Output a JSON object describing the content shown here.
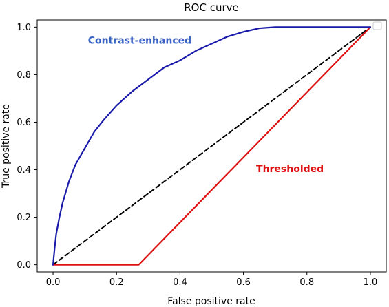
{
  "chart_data": {
    "type": "line",
    "title": "ROC curve",
    "xlabel": "False positive rate",
    "ylabel": "True positive rate",
    "xlim": [
      -0.05,
      1.05
    ],
    "ylim": [
      -0.03,
      1.03
    ],
    "x_ticks": [
      "0.0",
      "0.2",
      "0.4",
      "0.6",
      "0.8",
      "1.0"
    ],
    "y_ticks": [
      "0.0",
      "0.2",
      "0.4",
      "0.6",
      "0.8",
      "1.0"
    ],
    "grid": false,
    "legend": "top-right (empty)",
    "series": [
      {
        "name": "Contrast-enhanced",
        "color": "#1a1aaa",
        "style": "solid",
        "x": [
          0,
          0.005,
          0.01,
          0.02,
          0.03,
          0.05,
          0.07,
          0.1,
          0.13,
          0.16,
          0.2,
          0.25,
          0.3,
          0.35,
          0.4,
          0.45,
          0.5,
          0.55,
          0.6,
          0.65,
          0.7,
          0.75,
          0.8,
          0.85,
          0.9,
          0.95,
          1.0
        ],
        "y": [
          0,
          0.07,
          0.13,
          0.2,
          0.26,
          0.35,
          0.42,
          0.49,
          0.56,
          0.61,
          0.67,
          0.73,
          0.78,
          0.83,
          0.86,
          0.9,
          0.93,
          0.96,
          0.98,
          0.995,
          1.0,
          1.0,
          1.0,
          1.0,
          1.0,
          1.0,
          1.0
        ]
      },
      {
        "name": "Thresholded",
        "color": "#dd1111",
        "style": "solid",
        "x": [
          0,
          0.27,
          1.0
        ],
        "y": [
          0,
          0,
          1.0
        ]
      },
      {
        "color": "#000000",
        "style": "dashed",
        "x": [
          0,
          1
        ],
        "y": [
          0,
          1
        ]
      }
    ],
    "annotations": [
      {
        "text": "Contrast-enhanced",
        "x": 0.11,
        "y": 0.93,
        "color": "#3a62c4"
      },
      {
        "text": "Thresholded",
        "x": 0.64,
        "y": 0.39,
        "color": "#dd1111"
      }
    ]
  }
}
